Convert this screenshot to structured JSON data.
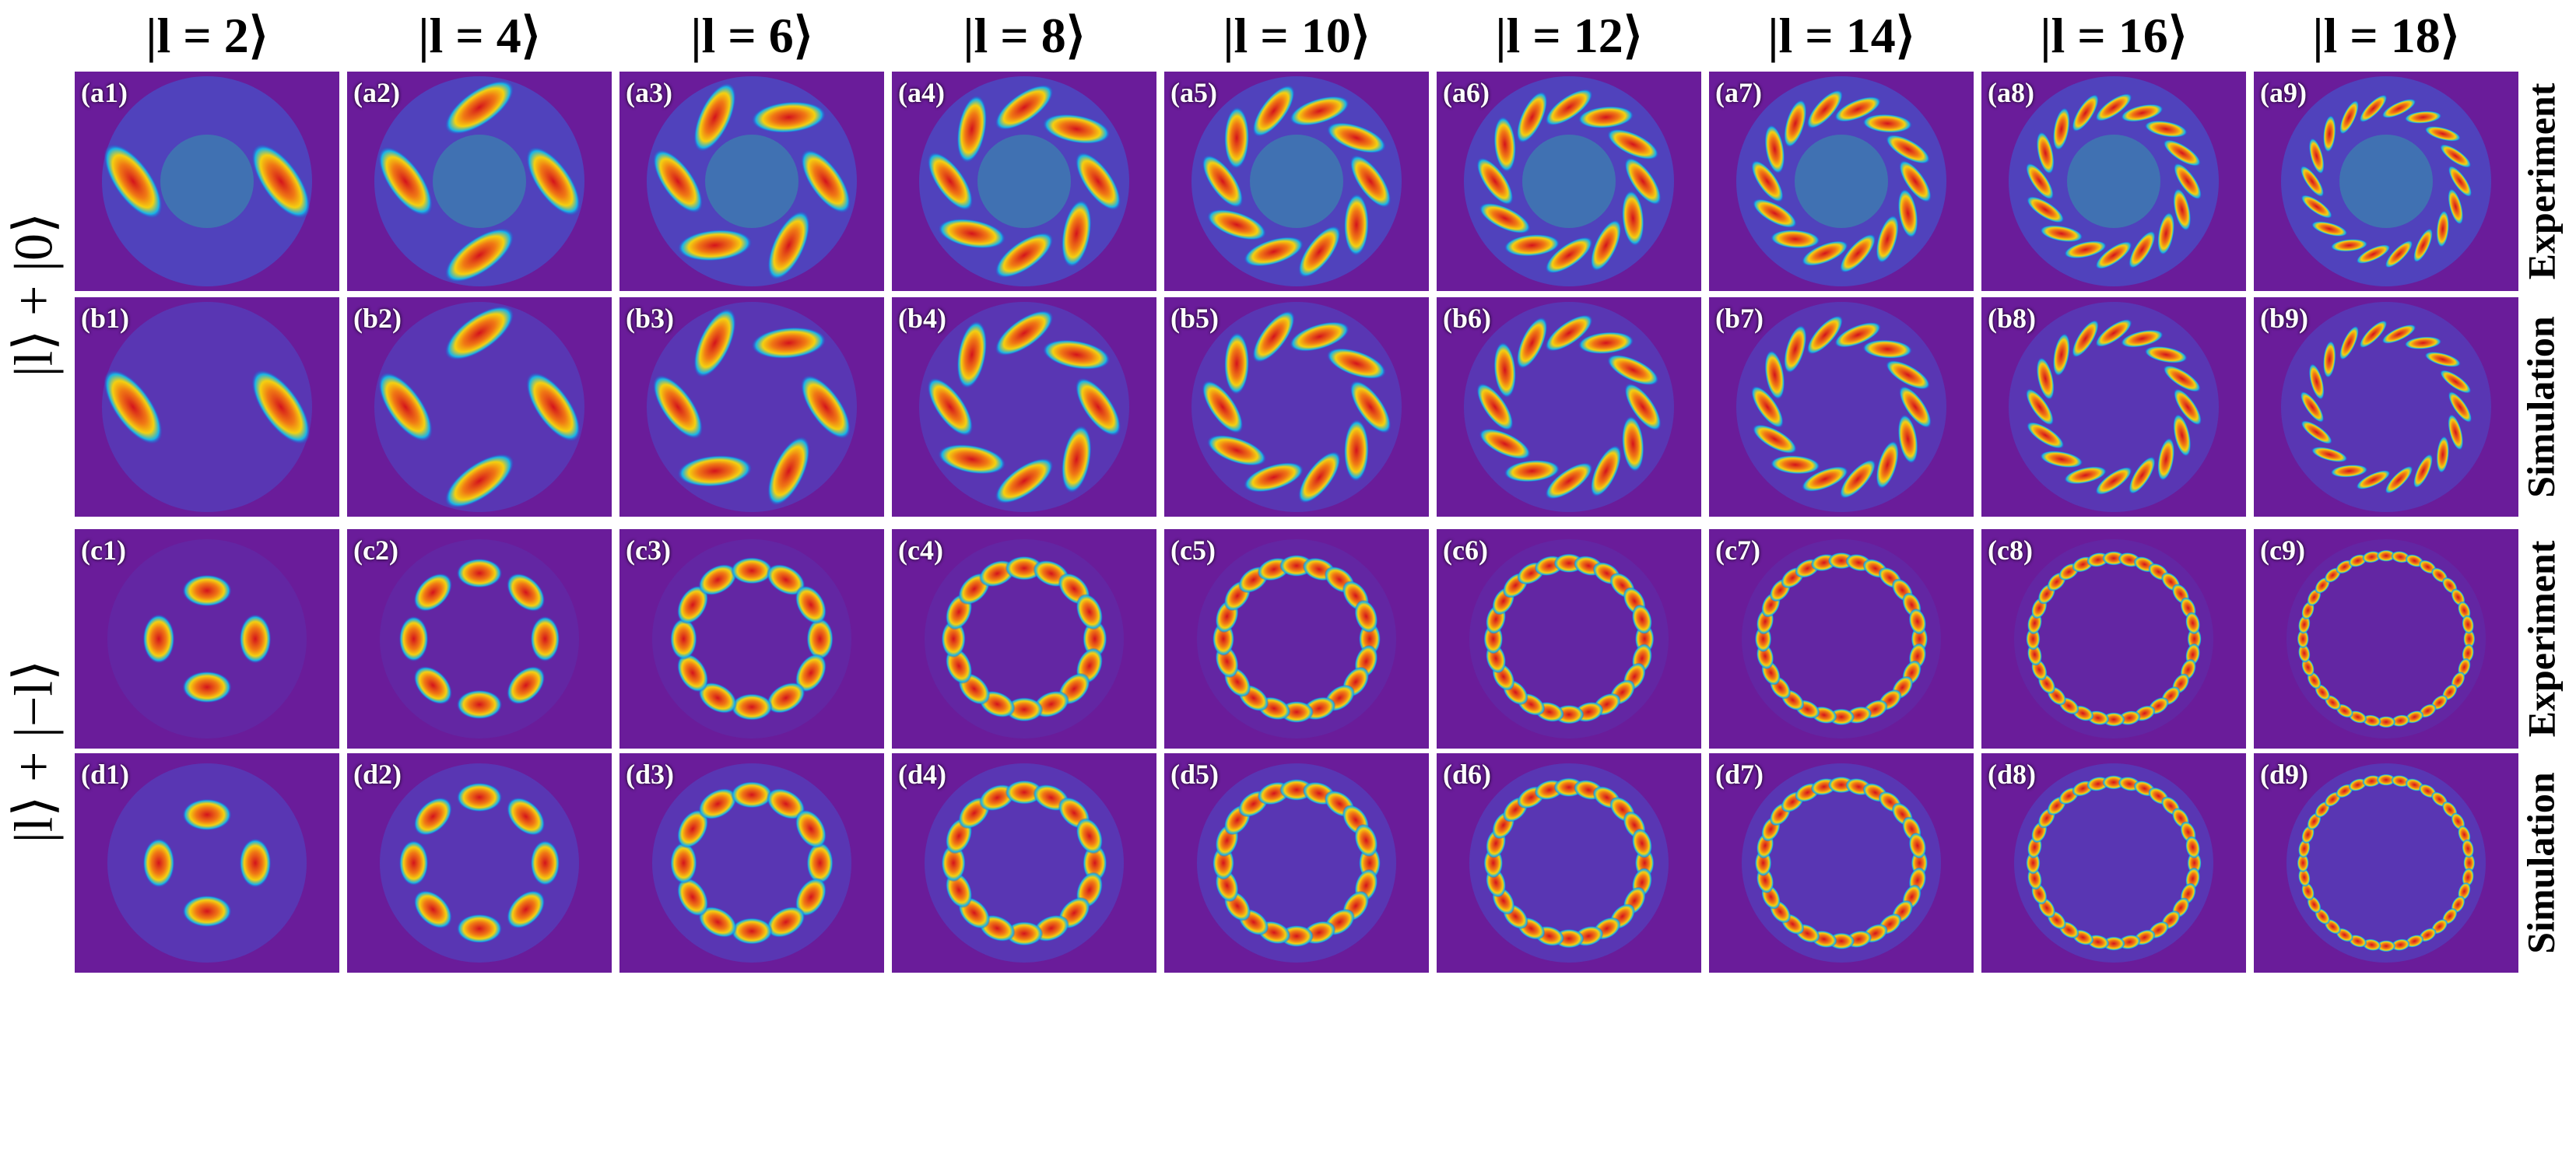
{
  "column_headers": [
    "|l = 2⟩",
    "|l = 4⟩",
    "|l = 6⟩",
    "|l = 8⟩",
    "|l = 10⟩",
    "|l = 12⟩",
    "|l = 14⟩",
    "|l = 16⟩",
    "|l = 18⟩"
  ],
  "row_groups": [
    {
      "ket_label": "|l⟩ + |0⟩"
    },
    {
      "ket_label": "|l⟩ + |−l⟩"
    }
  ],
  "rows": [
    {
      "side_label": "Experiment",
      "panels": [
        "(a1)",
        "(a2)",
        "(a3)",
        "(a4)",
        "(a5)",
        "(a6)",
        "(a7)",
        "(a8)",
        "(a9)"
      ]
    },
    {
      "side_label": "Simulation",
      "panels": [
        "(b1)",
        "(b2)",
        "(b3)",
        "(b4)",
        "(b5)",
        "(b6)",
        "(b7)",
        "(b8)",
        "(b9)"
      ]
    },
    {
      "side_label": "Experiment",
      "panels": [
        "(c1)",
        "(c2)",
        "(c3)",
        "(c4)",
        "(c5)",
        "(c6)",
        "(c7)",
        "(c8)",
        "(c9)"
      ]
    },
    {
      "side_label": "Simulation",
      "panels": [
        "(d1)",
        "(d2)",
        "(d3)",
        "(d4)",
        "(d5)",
        "(d6)",
        "(d7)",
        "(d8)",
        "(d9)"
      ]
    }
  ],
  "orders": [
    2,
    4,
    6,
    8,
    10,
    12,
    14,
    16,
    18
  ],
  "row_kinds": [
    "twisted-exp",
    "twisted-sim",
    "petal-exp",
    "petal-sim"
  ],
  "colors": {
    "background": "#6a1c9a",
    "hot": "#d4141c",
    "warm": "#f4d010",
    "cool": "#18b4e8",
    "dim": "#2848c8"
  }
}
